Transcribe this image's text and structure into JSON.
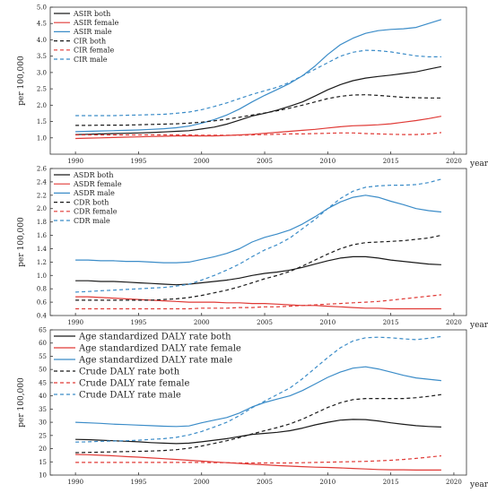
{
  "chart_data": [
    {
      "type": "line",
      "title": "",
      "ylabel": "per 100,000",
      "xlabel": "year",
      "xlim": [
        1988,
        2021
      ],
      "ylim": [
        0.5,
        5.0
      ],
      "yticks": [
        1.0,
        1.5,
        2.0,
        2.5,
        3.0,
        3.5,
        4.0,
        4.5,
        5.0
      ],
      "ytick_labels": [
        "1.0",
        "1.5",
        "2.0",
        "2.5",
        "3.0",
        "3.5",
        "4.0",
        "4.5",
        "5.0"
      ],
      "xticks": [
        1990,
        1995,
        2000,
        2005,
        2010,
        2015,
        2020
      ],
      "xtick_labels": [
        "1990",
        "1995",
        "2000",
        "2005",
        "2010",
        "2015",
        "2020"
      ],
      "legend": "top-left",
      "x": [
        1990,
        1991,
        1992,
        1993,
        1994,
        1995,
        1996,
        1997,
        1998,
        1999,
        2000,
        2001,
        2002,
        2003,
        2004,
        2005,
        2006,
        2007,
        2008,
        2009,
        2010,
        2011,
        2012,
        2013,
        2014,
        2015,
        2016,
        2017,
        2018,
        2019
      ],
      "series": [
        {
          "name": "ASIR both",
          "color": "#1a1a1a",
          "dash": "solid",
          "values": [
            1.1,
            1.11,
            1.12,
            1.13,
            1.14,
            1.15,
            1.16,
            1.18,
            1.2,
            1.22,
            1.27,
            1.33,
            1.42,
            1.54,
            1.67,
            1.75,
            1.85,
            1.97,
            2.1,
            2.28,
            2.47,
            2.63,
            2.75,
            2.83,
            2.88,
            2.92,
            2.97,
            3.02,
            3.1,
            3.18
          ]
        },
        {
          "name": "ASIR female",
          "color": "#e03a36",
          "dash": "solid",
          "values": [
            0.98,
            0.99,
            1.0,
            1.01,
            1.02,
            1.03,
            1.04,
            1.05,
            1.06,
            1.06,
            1.06,
            1.06,
            1.07,
            1.09,
            1.11,
            1.14,
            1.17,
            1.2,
            1.23,
            1.26,
            1.3,
            1.34,
            1.37,
            1.38,
            1.4,
            1.43,
            1.48,
            1.53,
            1.59,
            1.66
          ]
        },
        {
          "name": "ASIR male",
          "color": "#3b8cc8",
          "dash": "solid",
          "values": [
            1.19,
            1.2,
            1.21,
            1.22,
            1.23,
            1.24,
            1.26,
            1.28,
            1.31,
            1.36,
            1.45,
            1.56,
            1.7,
            1.88,
            2.1,
            2.3,
            2.48,
            2.67,
            2.9,
            3.2,
            3.55,
            3.85,
            4.05,
            4.2,
            4.28,
            4.32,
            4.34,
            4.38,
            4.5,
            4.62
          ]
        },
        {
          "name": "CIR both",
          "color": "#1a1a1a",
          "dash": "dashed",
          "values": [
            1.38,
            1.38,
            1.39,
            1.39,
            1.39,
            1.4,
            1.41,
            1.42,
            1.43,
            1.45,
            1.48,
            1.52,
            1.57,
            1.63,
            1.7,
            1.76,
            1.83,
            1.91,
            2.0,
            2.1,
            2.2,
            2.27,
            2.31,
            2.32,
            2.3,
            2.27,
            2.24,
            2.23,
            2.22,
            2.22
          ]
        },
        {
          "name": "CIR female",
          "color": "#e03a36",
          "dash": "dashed",
          "values": [
            1.09,
            1.09,
            1.09,
            1.09,
            1.09,
            1.09,
            1.09,
            1.09,
            1.09,
            1.09,
            1.08,
            1.08,
            1.08,
            1.08,
            1.09,
            1.1,
            1.11,
            1.12,
            1.12,
            1.13,
            1.14,
            1.15,
            1.15,
            1.13,
            1.12,
            1.11,
            1.1,
            1.1,
            1.12,
            1.16
          ]
        },
        {
          "name": "CIR male",
          "color": "#3b8cc8",
          "dash": "dashed",
          "values": [
            1.68,
            1.68,
            1.68,
            1.68,
            1.69,
            1.7,
            1.71,
            1.72,
            1.75,
            1.79,
            1.86,
            1.96,
            2.07,
            2.2,
            2.33,
            2.44,
            2.55,
            2.7,
            2.9,
            3.1,
            3.3,
            3.5,
            3.62,
            3.68,
            3.67,
            3.63,
            3.57,
            3.51,
            3.48,
            3.48
          ]
        }
      ]
    },
    {
      "type": "line",
      "title": "",
      "ylabel": "per 100,000",
      "xlabel": "year",
      "xlim": [
        1988,
        2021
      ],
      "ylim": [
        0.4,
        2.6
      ],
      "yticks": [
        0.4,
        0.6,
        0.8,
        1.0,
        1.2,
        1.4,
        1.6,
        1.8,
        2.0,
        2.2,
        2.4,
        2.6
      ],
      "ytick_labels": [
        "0.4",
        "0.6",
        "0.8",
        "1.0",
        "1.2",
        "1.4",
        "1.6",
        "1.8",
        "2.0",
        "2.2",
        "2.4",
        "2.6"
      ],
      "xticks": [
        1990,
        1995,
        2000,
        2005,
        2010,
        2015,
        2020
      ],
      "xtick_labels": [
        "1990",
        "1995",
        "2000",
        "2005",
        "2010",
        "2015",
        "2020"
      ],
      "legend": "top-left",
      "x": [
        1990,
        1991,
        1992,
        1993,
        1994,
        1995,
        1996,
        1997,
        1998,
        1999,
        2000,
        2001,
        2002,
        2003,
        2004,
        2005,
        2006,
        2007,
        2008,
        2009,
        2010,
        2011,
        2012,
        2013,
        2014,
        2015,
        2016,
        2017,
        2018,
        2019
      ],
      "series": [
        {
          "name": "ASDR both",
          "color": "#1a1a1a",
          "dash": "solid",
          "values": [
            0.92,
            0.92,
            0.91,
            0.91,
            0.9,
            0.89,
            0.88,
            0.87,
            0.86,
            0.87,
            0.89,
            0.91,
            0.93,
            0.96,
            1.0,
            1.03,
            1.05,
            1.08,
            1.12,
            1.17,
            1.22,
            1.26,
            1.28,
            1.28,
            1.26,
            1.23,
            1.21,
            1.19,
            1.17,
            1.16
          ]
        },
        {
          "name": "ASDR female",
          "color": "#e03a36",
          "dash": "solid",
          "values": [
            0.68,
            0.68,
            0.67,
            0.66,
            0.65,
            0.64,
            0.63,
            0.62,
            0.61,
            0.6,
            0.6,
            0.6,
            0.59,
            0.59,
            0.58,
            0.58,
            0.57,
            0.56,
            0.55,
            0.55,
            0.54,
            0.53,
            0.52,
            0.51,
            0.51,
            0.5,
            0.5,
            0.5,
            0.5,
            0.5
          ]
        },
        {
          "name": "ASDR male",
          "color": "#3b8cc8",
          "dash": "solid",
          "values": [
            1.23,
            1.23,
            1.22,
            1.22,
            1.21,
            1.21,
            1.2,
            1.19,
            1.19,
            1.2,
            1.24,
            1.28,
            1.33,
            1.4,
            1.5,
            1.57,
            1.62,
            1.68,
            1.77,
            1.88,
            2.0,
            2.1,
            2.17,
            2.2,
            2.17,
            2.11,
            2.06,
            2.0,
            1.97,
            1.95
          ]
        },
        {
          "name": "CDR both",
          "color": "#1a1a1a",
          "dash": "dashed",
          "values": [
            0.63,
            0.63,
            0.63,
            0.63,
            0.63,
            0.63,
            0.63,
            0.64,
            0.65,
            0.67,
            0.7,
            0.74,
            0.78,
            0.83,
            0.89,
            0.95,
            1.0,
            1.06,
            1.14,
            1.23,
            1.32,
            1.4,
            1.46,
            1.49,
            1.5,
            1.51,
            1.52,
            1.54,
            1.56,
            1.6
          ]
        },
        {
          "name": "CDR female",
          "color": "#e03a36",
          "dash": "dashed",
          "values": [
            0.5,
            0.5,
            0.5,
            0.5,
            0.5,
            0.5,
            0.5,
            0.5,
            0.5,
            0.5,
            0.51,
            0.51,
            0.51,
            0.52,
            0.52,
            0.53,
            0.53,
            0.54,
            0.55,
            0.56,
            0.57,
            0.58,
            0.59,
            0.6,
            0.61,
            0.63,
            0.65,
            0.67,
            0.69,
            0.71
          ]
        },
        {
          "name": "CDR male",
          "color": "#3b8cc8",
          "dash": "dashed",
          "values": [
            0.75,
            0.76,
            0.77,
            0.78,
            0.79,
            0.8,
            0.81,
            0.82,
            0.84,
            0.87,
            0.93,
            1.0,
            1.08,
            1.17,
            1.28,
            1.38,
            1.46,
            1.56,
            1.7,
            1.84,
            2.0,
            2.15,
            2.26,
            2.32,
            2.34,
            2.35,
            2.35,
            2.36,
            2.39,
            2.44
          ]
        }
      ]
    },
    {
      "type": "line",
      "title": "",
      "ylabel": "per 100,000",
      "xlabel": "year",
      "xlim": [
        1988,
        2021
      ],
      "ylim": [
        10,
        65
      ],
      "yticks": [
        10,
        15,
        20,
        25,
        30,
        35,
        40,
        45,
        50,
        55,
        60,
        65
      ],
      "ytick_labels": [
        "10",
        "15",
        "20",
        "25",
        "30",
        "35",
        "40",
        "45",
        "50",
        "55",
        "60",
        "65"
      ],
      "xticks": [
        1990,
        1995,
        2000,
        2005,
        2010,
        2015,
        2020
      ],
      "xtick_labels": [
        "1990",
        "1995",
        "2000",
        "2005",
        "2010",
        "2015",
        "2020"
      ],
      "legend": "top-left",
      "x": [
        1990,
        1991,
        1992,
        1993,
        1994,
        1995,
        1996,
        1997,
        1998,
        1999,
        2000,
        2001,
        2002,
        2003,
        2004,
        2005,
        2006,
        2007,
        2008,
        2009,
        2010,
        2011,
        2012,
        2013,
        2014,
        2015,
        2016,
        2017,
        2018,
        2019
      ],
      "series": [
        {
          "name": "Age standardized DALY rate both",
          "color": "#1a1a1a",
          "dash": "solid",
          "values": [
            23.5,
            23.4,
            23.2,
            23.0,
            22.8,
            22.6,
            22.3,
            22.1,
            21.9,
            22.1,
            22.6,
            23.2,
            23.8,
            24.6,
            25.4,
            25.8,
            26.2,
            26.8,
            27.8,
            29.0,
            30.0,
            30.8,
            31.1,
            31.0,
            30.5,
            29.8,
            29.2,
            28.7,
            28.4,
            28.2
          ]
        },
        {
          "name": "Age standardized DALY rate female",
          "color": "#e03a36",
          "dash": "solid",
          "values": [
            17.8,
            17.7,
            17.5,
            17.3,
            17.0,
            16.8,
            16.5,
            16.2,
            15.9,
            15.6,
            15.3,
            15.0,
            14.7,
            14.4,
            14.1,
            13.9,
            13.6,
            13.4,
            13.2,
            13.0,
            12.9,
            12.7,
            12.5,
            12.3,
            12.1,
            12.0,
            12.0,
            11.9,
            11.9,
            11.9
          ]
        },
        {
          "name": "Age standardized DALY rate male",
          "color": "#3b8cc8",
          "dash": "solid",
          "values": [
            30.0,
            29.8,
            29.6,
            29.3,
            29.1,
            28.9,
            28.7,
            28.5,
            28.4,
            28.6,
            29.8,
            30.8,
            31.8,
            33.5,
            35.8,
            37.5,
            38.8,
            40.0,
            42.0,
            44.5,
            47.0,
            49.0,
            50.5,
            51.0,
            50.2,
            49.0,
            47.8,
            46.8,
            46.3,
            45.8
          ]
        },
        {
          "name": "Crude DALY rate both",
          "color": "#1a1a1a",
          "dash": "dashed",
          "values": [
            18.5,
            18.6,
            18.7,
            18.8,
            18.9,
            19.0,
            19.1,
            19.3,
            19.6,
            20.2,
            21.0,
            22.0,
            23.0,
            24.2,
            25.6,
            26.8,
            28.0,
            29.4,
            31.2,
            33.4,
            35.6,
            37.4,
            38.6,
            39.0,
            39.0,
            39.0,
            39.0,
            39.3,
            39.8,
            40.5
          ]
        },
        {
          "name": "Crude DALY rate female",
          "color": "#e03a36",
          "dash": "dashed",
          "values": [
            14.8,
            14.8,
            14.8,
            14.8,
            14.8,
            14.8,
            14.8,
            14.8,
            14.8,
            14.8,
            14.8,
            14.7,
            14.7,
            14.6,
            14.6,
            14.6,
            14.6,
            14.6,
            14.7,
            14.8,
            14.9,
            15.0,
            15.1,
            15.2,
            15.4,
            15.6,
            15.9,
            16.3,
            16.8,
            17.3
          ]
        },
        {
          "name": "Crude DALY rate male",
          "color": "#3b8cc8",
          "dash": "dashed",
          "values": [
            22.5,
            22.6,
            22.8,
            22.9,
            23.0,
            23.2,
            23.5,
            23.8,
            24.3,
            25.2,
            26.5,
            28.2,
            30.0,
            32.5,
            35.5,
            38.0,
            40.5,
            43.0,
            46.5,
            50.5,
            54.5,
            58.2,
            60.8,
            62.0,
            62.2,
            62.0,
            61.6,
            61.3,
            61.8,
            62.5
          ]
        }
      ]
    }
  ]
}
